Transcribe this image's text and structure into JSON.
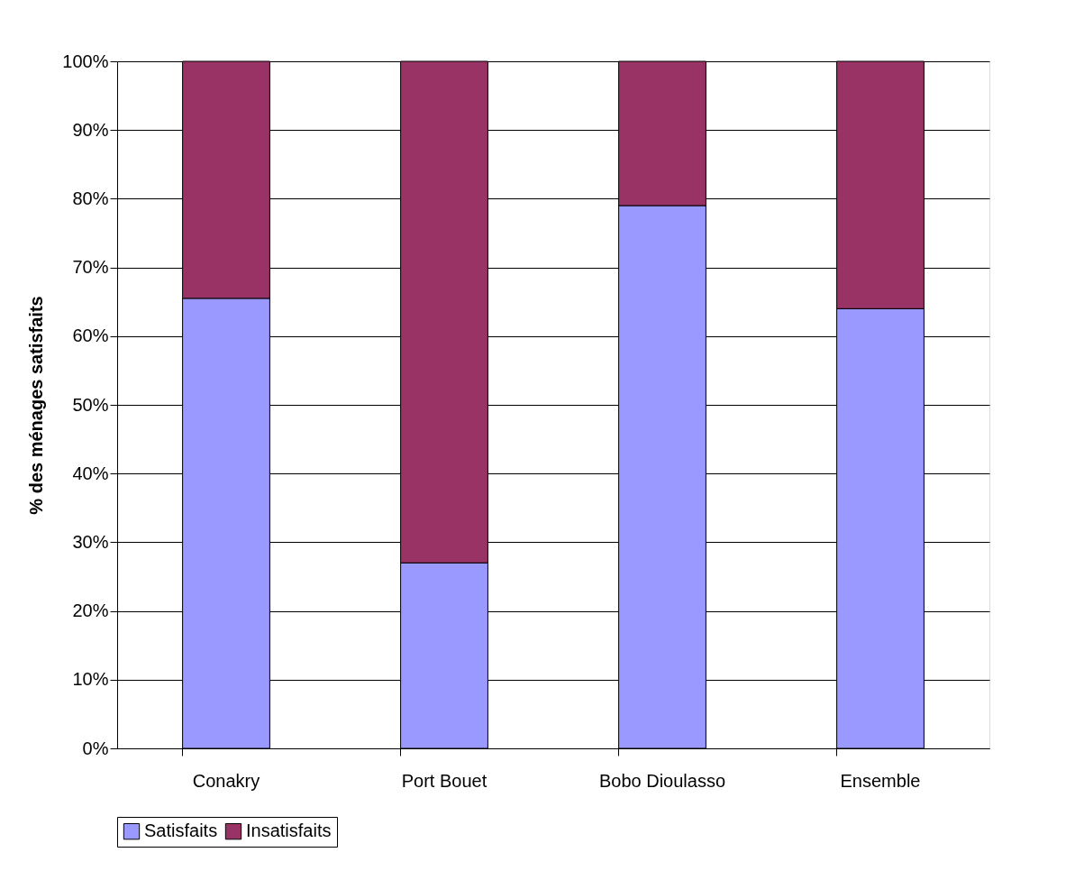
{
  "chart_data": {
    "type": "bar",
    "stacked": true,
    "ylabel": "% des ménages satisfaits",
    "categories": [
      "Conakry",
      "Port Bouet",
      "Bobo Dioulasso",
      "Ensemble"
    ],
    "series": [
      {
        "name": "Satisfaits",
        "color": "#9999ff",
        "values": [
          65.5,
          27,
          79,
          64
        ]
      },
      {
        "name": "Insatisfaits",
        "color": "#993366",
        "values": [
          34.5,
          73,
          21,
          36
        ]
      }
    ],
    "ylim": [
      0,
      100
    ],
    "yticks": [
      {
        "value": 0,
        "label": "0%"
      },
      {
        "value": 10,
        "label": "10%"
      },
      {
        "value": 20,
        "label": "20%"
      },
      {
        "value": 30,
        "label": "30%"
      },
      {
        "value": 40,
        "label": "40%"
      },
      {
        "value": 50,
        "label": "50%"
      },
      {
        "value": 60,
        "label": "60%"
      },
      {
        "value": 70,
        "label": "70%"
      },
      {
        "value": 80,
        "label": "80%"
      },
      {
        "value": 90,
        "label": "90%"
      },
      {
        "value": 100,
        "label": "100%"
      }
    ],
    "grid": "y",
    "legend": "bottom"
  }
}
